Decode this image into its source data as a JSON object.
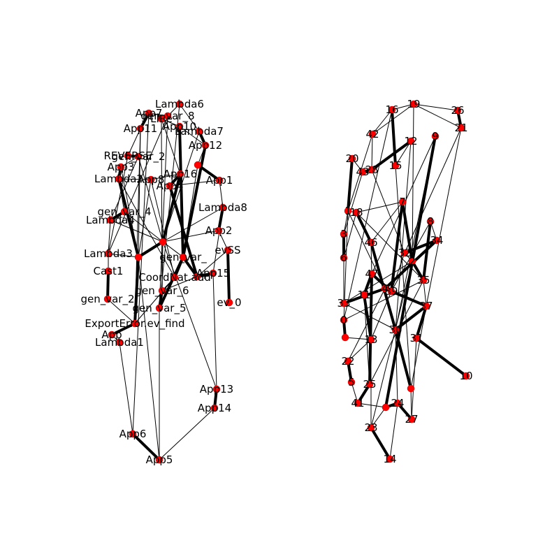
{
  "colors": {
    "node": "#ff0000",
    "edge": "#000000",
    "label": "#000000",
    "background": "#ffffff"
  },
  "left_graph": {
    "node_labels": [
      "Lambda6",
      "App7",
      "LIRe",
      "gen_var_8",
      "App10",
      "App11",
      "Lambda7",
      "App12",
      "REVERSE",
      "gen_var_2",
      "App3",
      "Lambda2",
      "App8",
      "App16",
      "App4",
      "App1",
      "Lambda8",
      "gen_var_4",
      "Lambda4",
      "App2",
      "evSS",
      "Lambda3",
      "gen_var_",
      "Cast1",
      "App15",
      "CoordNat.add",
      "gen_var_6",
      "gen_var_2",
      "ev_0",
      "gen_var_5",
      "ExportError.ev_find",
      "App",
      "Lambda1",
      "App13",
      "App14",
      "App6",
      "App5"
    ]
  },
  "right_graph": {
    "node_labels": [
      "16",
      "19",
      "26",
      "42",
      "21",
      "12",
      "9",
      "20",
      "15",
      "43",
      "28",
      "7",
      "1",
      "18",
      "8",
      "3",
      "46",
      "34",
      "6",
      "32",
      "2",
      "35",
      "47",
      "4",
      "37",
      "11",
      "39",
      "33",
      "30",
      "0",
      "13",
      "22",
      "5",
      "25",
      "41",
      "27",
      "23",
      "14",
      "10",
      "31",
      "24"
    ]
  }
}
